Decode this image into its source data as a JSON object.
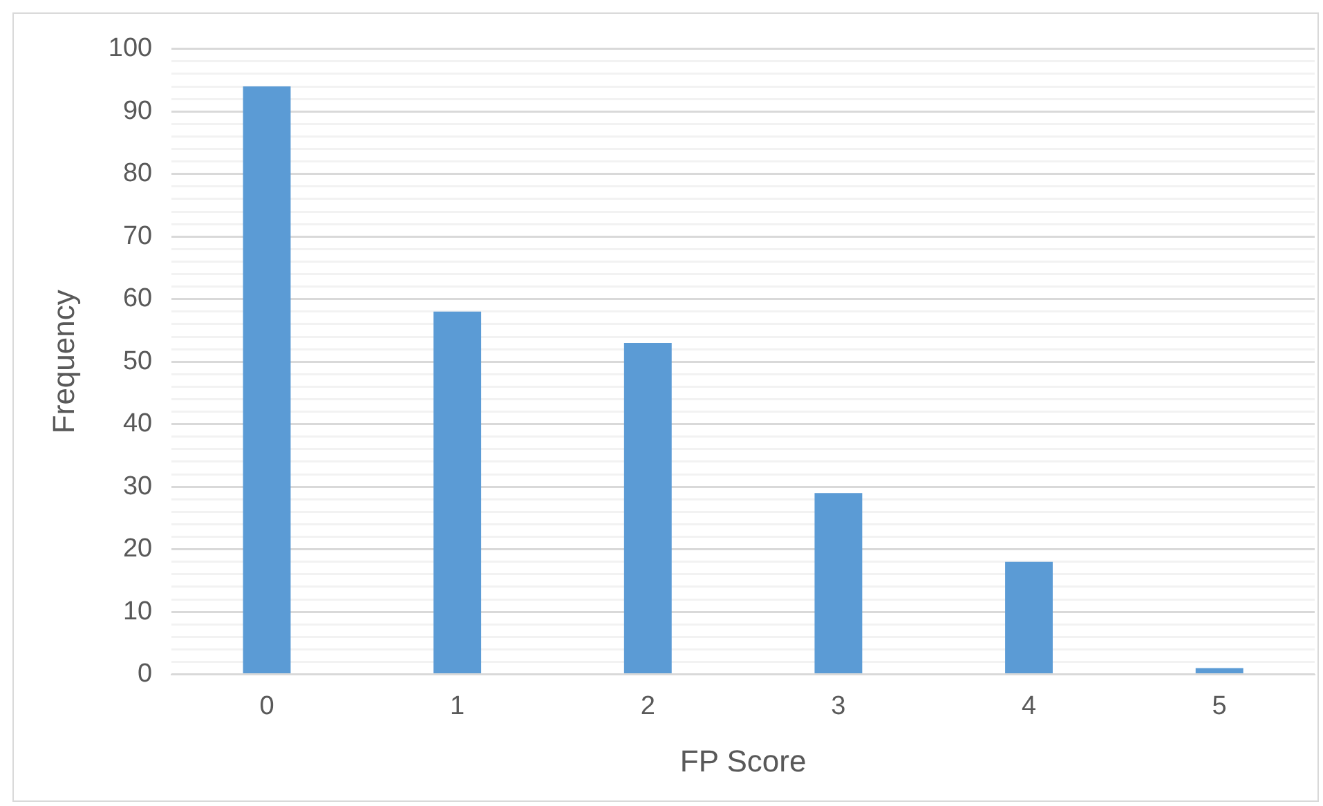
{
  "chart_data": {
    "type": "bar",
    "xlabel": "FP Score",
    "ylabel": "Frequency",
    "categories": [
      "0",
      "1",
      "2",
      "3",
      "4",
      "5"
    ],
    "values": [
      94,
      58,
      53,
      29,
      18,
      1
    ],
    "color": "#5b9bd5",
    "ylim": [
      0,
      100
    ],
    "yticks": [
      0,
      {
        "value": 2,
        "label": null
      },
      {
        "value": 4,
        "label": null
      },
      {
        "value": 6,
        "label": null
      },
      {
        "value": 8,
        "label": null
      },
      10,
      {
        "value": 12,
        "label": null
      },
      {
        "value": 14,
        "label": null
      },
      {
        "value": 16,
        "label": null
      },
      {
        "value": 18,
        "label": null
      },
      20,
      {
        "value": 22,
        "label": null
      },
      {
        "value": 24,
        "label": null
      },
      {
        "value": 26,
        "label": null
      },
      {
        "value": 28,
        "label": null
      },
      30,
      {
        "value": 32,
        "label": null
      },
      {
        "value": 34,
        "label": null
      },
      {
        "value": 36,
        "label": null
      },
      {
        "value": 38,
        "label": null
      },
      40,
      {
        "value": 42,
        "label": null
      },
      {
        "value": 44,
        "label": null
      },
      {
        "value": 46,
        "label": null
      },
      {
        "value": 48,
        "label": null
      },
      50,
      {
        "value": 52,
        "label": null
      },
      {
        "value": 54,
        "label": null
      },
      {
        "value": 56,
        "label": null
      },
      {
        "value": 58,
        "label": null
      },
      60,
      {
        "value": 62,
        "label": null
      },
      {
        "value": 64,
        "label": null
      },
      {
        "value": 66,
        "label": null
      },
      {
        "value": 68,
        "label": null
      },
      70,
      {
        "value": 72,
        "label": null
      },
      {
        "value": 74,
        "label": null
      },
      {
        "value": 76,
        "label": null
      },
      {
        "value": 78,
        "label": null
      },
      80,
      {
        "value": 82,
        "label": null
      },
      {
        "value": 84,
        "label": null
      },
      {
        "value": 86,
        "label": null
      },
      {
        "value": 88,
        "label": null
      },
      90,
      {
        "value": 92,
        "label": null
      },
      {
        "value": 94,
        "label": null
      },
      {
        "value": 96,
        "label": null
      },
      {
        "value": 98,
        "label": null
      },
      100
    ],
    "grid": "y",
    "legend": false
  }
}
